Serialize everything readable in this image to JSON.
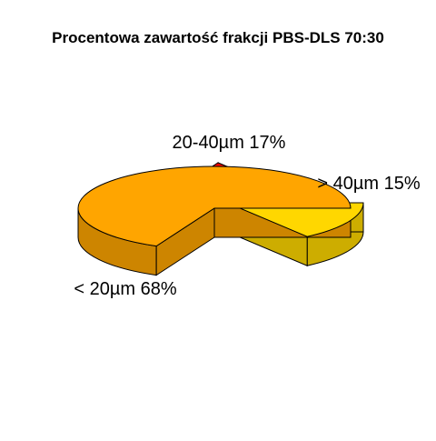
{
  "chart_data": {
    "type": "pie",
    "title": "Procentowa zawartość frakcji PBS-DLS 70:30",
    "three_d": true,
    "slices": [
      {
        "label": "< 20µm 68%",
        "value": 68,
        "color": "#FFA500",
        "side_color": "#CD8500"
      },
      {
        "label": "20-40µm 17%",
        "value": 17,
        "color": "#FF0000",
        "side_color": "#CD0000"
      },
      {
        "label": "> 40µm 15%",
        "value": 15,
        "color": "#FFD700",
        "side_color": "#CDAD00"
      }
    ]
  }
}
